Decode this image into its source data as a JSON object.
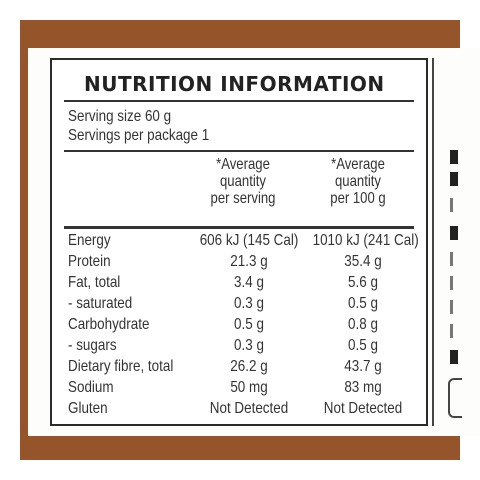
{
  "label": {
    "title": "NUTRITION INFORMATION",
    "serving_size": "Serving size 60 g",
    "servings_per_package": "Servings per package 1",
    "columns": [
      {
        "line1": "*Average",
        "line2": "quantity",
        "line3": "per serving"
      },
      {
        "line1": "*Average",
        "line2": "quantity",
        "line3": "per 100 g"
      }
    ],
    "rows": [
      {
        "nutrient": "Energy",
        "per_serving": "606 kJ (145 Cal)",
        "per_100g": "1010 kJ (241 Cal)"
      },
      {
        "nutrient": "Protein",
        "per_serving": "21.3 g",
        "per_100g": "35.4 g"
      },
      {
        "nutrient": "Fat, total",
        "per_serving": "3.4 g",
        "per_100g": "5.6 g"
      },
      {
        "nutrient": "- saturated",
        "per_serving": "0.3 g",
        "per_100g": "0.5 g"
      },
      {
        "nutrient": "Carbohydrate",
        "per_serving": "0.5 g",
        "per_100g": "0.8 g"
      },
      {
        "nutrient": "- sugars",
        "per_serving": "0.3 g",
        "per_100g": "0.5 g"
      },
      {
        "nutrient": "Dietary fibre, total",
        "per_serving": "26.2 g",
        "per_100g": "43.7 g"
      },
      {
        "nutrient": "Sodium",
        "per_serving": "50 mg",
        "per_100g": "83 mg"
      },
      {
        "nutrient": "Gluten",
        "per_serving": "Not Detected",
        "per_100g": "Not Detected"
      }
    ]
  },
  "colors": {
    "frame": "#95542a",
    "text": "#333333"
  }
}
